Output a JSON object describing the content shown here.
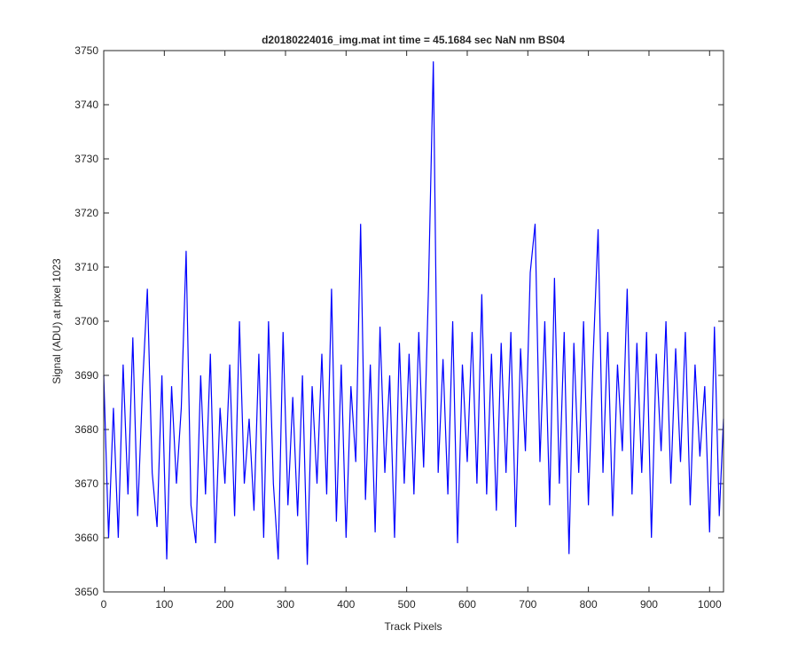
{
  "chart_data": {
    "type": "line",
    "title": "d20180224016_img.mat int time = 45.1684 sec  NaN nm BS04",
    "x_label": "Track Pixels",
    "y_label": "Signal (ADU) at pixel 1023",
    "x": [
      0,
      8,
      16,
      24,
      32,
      40,
      48,
      56,
      64,
      72,
      80,
      88,
      96,
      104,
      112,
      120,
      128,
      136,
      144,
      152,
      160,
      168,
      176,
      184,
      192,
      200,
      208,
      216,
      224,
      232,
      240,
      248,
      256,
      264,
      272,
      280,
      288,
      296,
      304,
      312,
      320,
      328,
      336,
      344,
      352,
      360,
      368,
      376,
      384,
      392,
      400,
      408,
      416,
      424,
      432,
      440,
      448,
      456,
      464,
      472,
      480,
      488,
      496,
      504,
      512,
      520,
      528,
      536,
      544,
      552,
      560,
      568,
      576,
      584,
      592,
      600,
      608,
      616,
      624,
      632,
      640,
      648,
      656,
      664,
      672,
      680,
      688,
      696,
      704,
      712,
      720,
      728,
      736,
      744,
      752,
      760,
      768,
      776,
      784,
      792,
      800,
      808,
      816,
      824,
      832,
      840,
      848,
      856,
      864,
      872,
      880,
      888,
      896,
      904,
      912,
      920,
      928,
      936,
      944,
      952,
      960,
      968,
      976,
      984,
      992,
      1000,
      1008,
      1016,
      1023
    ],
    "series": [
      {
        "color": "#0000ff",
        "values": [
          3690,
          3660,
          3684,
          3660,
          3692,
          3668,
          3697,
          3664,
          3688,
          3706,
          3672,
          3662,
          3690,
          3656,
          3688,
          3670,
          3684,
          3713,
          3666,
          3659,
          3690,
          3668,
          3694,
          3659,
          3684,
          3670,
          3692,
          3664,
          3700,
          3670,
          3682,
          3665,
          3694,
          3660,
          3700,
          3670,
          3656,
          3698,
          3666,
          3686,
          3664,
          3690,
          3655,
          3688,
          3670,
          3694,
          3668,
          3706,
          3663,
          3692,
          3660,
          3688,
          3674,
          3718,
          3667,
          3692,
          3661,
          3699,
          3672,
          3690,
          3660,
          3696,
          3670,
          3694,
          3668,
          3698,
          3673,
          3706,
          3748,
          3672,
          3693,
          3668,
          3700,
          3659,
          3692,
          3674,
          3698,
          3670,
          3705,
          3668,
          3694,
          3665,
          3696,
          3672,
          3698,
          3662,
          3695,
          3676,
          3709,
          3718,
          3674,
          3700,
          3666,
          3708,
          3670,
          3698,
          3657,
          3696,
          3672,
          3700,
          3666,
          3694,
          3717,
          3672,
          3698,
          3664,
          3692,
          3676,
          3706,
          3668,
          3696,
          3672,
          3698,
          3660,
          3694,
          3676,
          3700,
          3670,
          3695,
          3674,
          3698,
          3666,
          3692,
          3675,
          3688,
          3661,
          3699,
          3664,
          3682
        ]
      }
    ],
    "xlim": [
      0,
      1023
    ],
    "ylim": [
      3650,
      3750
    ],
    "xticks": [
      0,
      100,
      200,
      300,
      400,
      500,
      600,
      700,
      800,
      900,
      1000
    ],
    "yticks": [
      3650,
      3660,
      3670,
      3680,
      3690,
      3700,
      3710,
      3720,
      3730,
      3740,
      3750
    ]
  }
}
